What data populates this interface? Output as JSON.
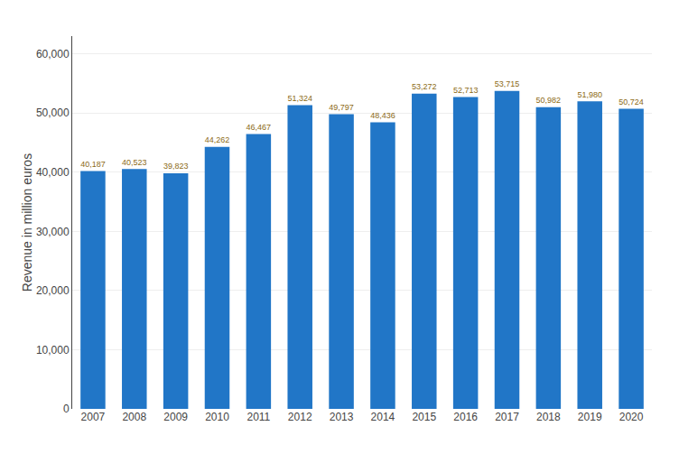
{
  "chart_data": {
    "type": "bar",
    "ylabel": "Revenue in million euros",
    "categories": [
      "2007",
      "2008",
      "2009",
      "2010",
      "2011",
      "2012",
      "2013",
      "2014",
      "2015",
      "2016",
      "2017",
      "2018",
      "2019",
      "2020"
    ],
    "values": [
      40187,
      40523,
      39823,
      44262,
      46467,
      51324,
      49797,
      48436,
      53272,
      52713,
      53715,
      50982,
      51980,
      50724
    ],
    "value_labels": [
      "40,187",
      "40,523",
      "39,823",
      "44,262",
      "46,467",
      "51,324",
      "49,797",
      "48,436",
      "53,272",
      "52,713",
      "53,715",
      "50,982",
      "51,980",
      "50,724"
    ],
    "data_labels": true,
    "color": "#2176c7",
    "ylim": [
      0,
      63000
    ],
    "yticks": [
      0,
      {
        "value": 10000,
        "label": "10,000"
      },
      {
        "value": 20000,
        "label": "20,000"
      },
      {
        "value": 30000,
        "label": "30,000"
      },
      {
        "value": 40000,
        "label": "40,000"
      },
      {
        "value": 50000,
        "label": "50,000"
      },
      {
        "value": 60000,
        "label": "60,000"
      }
    ],
    "grid": true
  }
}
